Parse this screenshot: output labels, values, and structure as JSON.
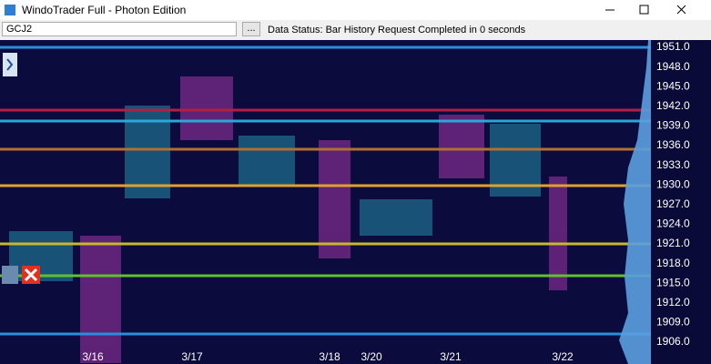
{
  "window": {
    "title": "WindoTrader Full - Photon Edition"
  },
  "toolbar": {
    "symbol": "GCJ2",
    "browse_button": "...",
    "status": "Data Status: Bar History Request Completed in 0 seconds"
  },
  "price_axis": {
    "labels": [
      "1951.0",
      "1948.0",
      "1945.0",
      "1942.0",
      "1939.0",
      "1936.0",
      "1933.0",
      "1930.0",
      "1927.0",
      "1924.0",
      "1921.0",
      "1918.0",
      "1915.0",
      "1912.0",
      "1909.0",
      "1906.0"
    ]
  },
  "date_axis": {
    "labels": [
      "3/16",
      "3/17",
      "3/18",
      "3/20",
      "3/21",
      "3/22"
    ]
  }
}
